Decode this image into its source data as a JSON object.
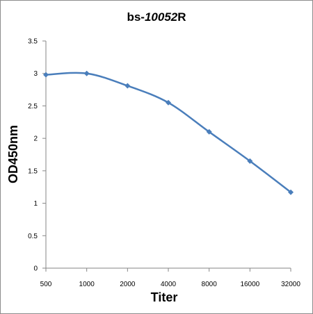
{
  "chart_data": {
    "type": "line",
    "title_main": "bs-",
    "title_italic": "10052",
    "title_end": "R",
    "xlabel": "Titer",
    "ylabel": "OD450nm",
    "categories": [
      "500",
      "1000",
      "2000",
      "4000",
      "8000",
      "16000",
      "32000"
    ],
    "series": [
      {
        "values": [
          2.98,
          3.0,
          2.81,
          2.55,
          2.1,
          1.65,
          1.17
        ]
      }
    ],
    "ylim": [
      0,
      3.5
    ],
    "yticks": [
      "0",
      "0.5",
      "1",
      "1.5",
      "2",
      "2.5",
      "3",
      "3.5"
    ],
    "grid": false,
    "legend": "none",
    "colors": {
      "line": "#4a7ebb",
      "axis": "#868686"
    }
  }
}
